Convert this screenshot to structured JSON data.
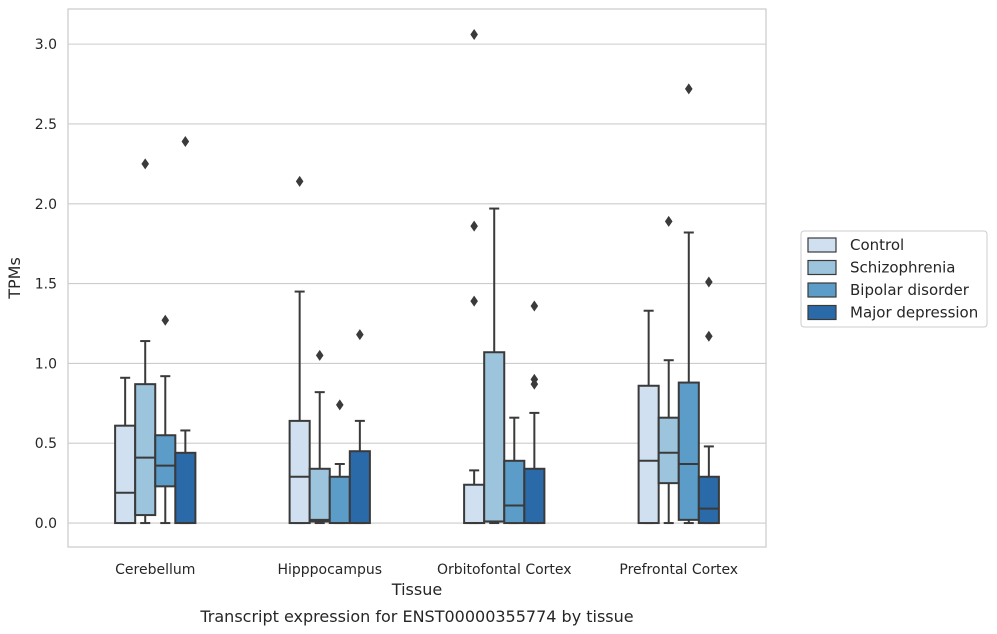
{
  "caption": "Transcript expression for ENST00000355774 by tissue",
  "chart_data": {
    "type": "box",
    "xlabel": "Tissue",
    "ylabel": "TPMs",
    "ylim": [
      -0.15,
      3.22
    ],
    "yticks": [
      "0.0",
      "0.5",
      "1.0",
      "1.5",
      "2.0",
      "2.5",
      "3.0"
    ],
    "grid": "horizontal",
    "legend_position": "right",
    "categories": [
      "Cerebellum",
      "Hipppocampus",
      "Orbitofontal Cortex",
      "Prefrontal Cortex"
    ],
    "series": [
      {
        "name": "Control",
        "color": "#d0e0f0",
        "boxes": [
          {
            "whislo": 0.0,
            "q1": 0.0,
            "med": 0.19,
            "q3": 0.61,
            "whishi": 0.91,
            "fliers": []
          },
          {
            "whislo": 0.0,
            "q1": 0.0,
            "med": 0.29,
            "q3": 0.64,
            "whishi": 1.45,
            "fliers": [
              2.14
            ]
          },
          {
            "whislo": 0.0,
            "q1": 0.0,
            "med": 0.0,
            "q3": 0.24,
            "whishi": 0.33,
            "fliers": [
              1.39,
              1.86,
              3.06
            ]
          },
          {
            "whislo": 0.0,
            "q1": 0.0,
            "med": 0.39,
            "q3": 0.86,
            "whishi": 1.33,
            "fliers": []
          }
        ]
      },
      {
        "name": "Schizophrenia",
        "color": "#9cc4dc",
        "boxes": [
          {
            "whislo": 0.0,
            "q1": 0.05,
            "med": 0.41,
            "q3": 0.87,
            "whishi": 1.14,
            "fliers": [
              2.25
            ]
          },
          {
            "whislo": 0.0,
            "q1": 0.01,
            "med": 0.02,
            "q3": 0.34,
            "whishi": 0.82,
            "fliers": [
              1.05
            ]
          },
          {
            "whislo": 0.0,
            "q1": 0.01,
            "med": 0.01,
            "q3": 1.07,
            "whishi": 1.97,
            "fliers": []
          },
          {
            "whislo": 0.0,
            "q1": 0.25,
            "med": 0.44,
            "q3": 0.66,
            "whishi": 1.02,
            "fliers": [
              1.89
            ]
          }
        ]
      },
      {
        "name": "Bipolar disorder",
        "color": "#5b9cc9",
        "boxes": [
          {
            "whislo": 0.0,
            "q1": 0.23,
            "med": 0.36,
            "q3": 0.55,
            "whishi": 0.92,
            "fliers": [
              1.27
            ]
          },
          {
            "whislo": 0.0,
            "q1": 0.0,
            "med": 0.0,
            "q3": 0.29,
            "whishi": 0.37,
            "fliers": [
              0.74
            ]
          },
          {
            "whislo": 0.0,
            "q1": 0.0,
            "med": 0.11,
            "q3": 0.39,
            "whishi": 0.66,
            "fliers": []
          },
          {
            "whislo": 0.0,
            "q1": 0.02,
            "med": 0.37,
            "q3": 0.88,
            "whishi": 1.82,
            "fliers": [
              2.72
            ]
          }
        ]
      },
      {
        "name": "Major depression",
        "color": "#2b6aa8",
        "boxes": [
          {
            "whislo": 0.0,
            "q1": 0.0,
            "med": 0.0,
            "q3": 0.44,
            "whishi": 0.58,
            "fliers": [
              2.39
            ]
          },
          {
            "whislo": 0.0,
            "q1": 0.0,
            "med": 0.0,
            "q3": 0.45,
            "whishi": 0.64,
            "fliers": [
              1.18
            ]
          },
          {
            "whislo": 0.0,
            "q1": 0.0,
            "med": 0.0,
            "q3": 0.34,
            "whishi": 0.69,
            "fliers": [
              0.87,
              0.9,
              1.36
            ]
          },
          {
            "whislo": 0.0,
            "q1": 0.0,
            "med": 0.09,
            "q3": 0.29,
            "whishi": 0.48,
            "fliers": [
              1.17,
              1.51
            ]
          }
        ]
      }
    ]
  }
}
